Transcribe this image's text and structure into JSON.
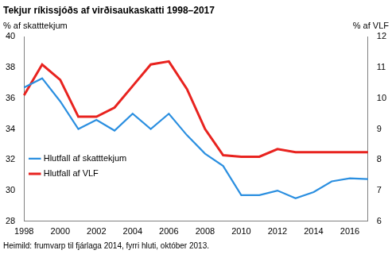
{
  "chart_data": {
    "type": "line",
    "title": "Tekjur ríkissjóðs af virðisaukaskatti 1998–2017",
    "y_label": "% af skatttekjum",
    "y2_label": "% af VLF",
    "note": "Heimild: frumvarp til fjárlaga 2014, fyrri hluti, október 2013.",
    "categories": [
      "1998",
      null,
      "2000",
      null,
      "2002",
      null,
      "2004",
      null,
      "2006",
      null,
      "2008",
      null,
      "2010",
      null,
      "2012",
      null,
      "2014",
      null,
      "2016",
      null
    ],
    "series": [
      {
        "name": "Hlutfall af skatttekjum",
        "color": "#2b8fe0",
        "axis": "y",
        "values": [
          36.7,
          37.3,
          35.8,
          34.0,
          34.6,
          33.9,
          35.0,
          34.0,
          35.0,
          33.6,
          32.4,
          31.6,
          29.7,
          29.7,
          30.0,
          29.5,
          29.9,
          30.6,
          30.8,
          30.75
        ]
      },
      {
        "name": "Hlutfall af VLF",
        "color": "#e8231f",
        "axis": "y2",
        "values": [
          10.1,
          11.1,
          10.6,
          9.4,
          9.4,
          9.7,
          10.4,
          11.1,
          11.2,
          10.3,
          9.0,
          8.15,
          8.1,
          8.1,
          8.35,
          8.25,
          8.25,
          8.25,
          8.25,
          8.25
        ]
      }
    ],
    "ylim": [
      28,
      40
    ],
    "yticks": [
      28,
      30,
      32,
      34,
      36,
      38,
      40
    ],
    "y2lim": [
      6,
      12
    ],
    "y2ticks": [
      6,
      7,
      8,
      9,
      10,
      11,
      12
    ],
    "grid": false,
    "legend": "upper right"
  }
}
